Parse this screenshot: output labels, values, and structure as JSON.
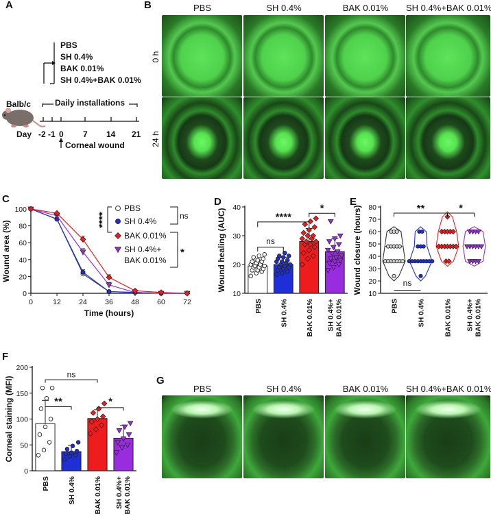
{
  "panel_letters": [
    "A",
    "B",
    "C",
    "D",
    "E",
    "F",
    "G"
  ],
  "panel_a": {
    "treatments": [
      "PBS",
      "SH 0.4%",
      "BAK 0.01%",
      "SH 0.4%+BAK 0.01%"
    ],
    "daily_label": "Daily installations",
    "mouse_label": "Balb/c",
    "day_label": "Day",
    "days": [
      "-2",
      "-1",
      "0",
      "7",
      "14",
      "21"
    ],
    "wound_label": "Corneal wound"
  },
  "panel_b": {
    "columns": [
      "PBS",
      "SH 0.4%",
      "BAK 0.01%",
      "SH 0.4%+BAK 0.01%"
    ],
    "rows": [
      "0 h",
      "24 h"
    ]
  },
  "panel_g": {
    "columns": [
      "PBS",
      "SH 0.4%",
      "BAK 0.01%",
      "SH 0.4%+BAK 0.01%"
    ]
  },
  "colors": {
    "pbs": "#ffffff",
    "sh": "#1f2fd8",
    "bak": "#ee1c1c",
    "shbak": "#9a2ce0",
    "fluor": "#39c93a"
  },
  "chart_data": [
    {
      "id": "C",
      "type": "line",
      "xlabel": "Time (hours)",
      "ylabel": "Wound area (%)",
      "x": [
        0,
        12,
        24,
        36,
        48,
        60,
        72
      ],
      "xlim": [
        0,
        72
      ],
      "ylim": [
        0,
        100
      ],
      "xticks": [
        "0",
        "12",
        "24",
        "36",
        "48",
        "60",
        "72"
      ],
      "yticks": [
        "0",
        "20",
        "40",
        "60",
        "80",
        "100"
      ],
      "series": [
        {
          "name": "PBS",
          "values": [
            100,
            88,
            23,
            2,
            1,
            0,
            0
          ],
          "errors": [
            0,
            2,
            3,
            1,
            0,
            0,
            0
          ]
        },
        {
          "name": "SH 0.4%",
          "values": [
            100,
            88,
            25,
            2,
            1,
            0,
            0
          ],
          "errors": [
            0,
            2,
            3,
            1,
            0,
            0,
            0
          ]
        },
        {
          "name": "BAK 0.01%",
          "values": [
            100,
            95,
            64,
            19,
            3,
            1,
            0
          ],
          "errors": [
            0,
            1,
            4,
            3,
            1,
            0,
            0
          ]
        },
        {
          "name": "SH 0.4%+ BAK 0.01%",
          "values": [
            100,
            92,
            49,
            10,
            1,
            0,
            0
          ],
          "errors": [
            0,
            1,
            4,
            3,
            1,
            0,
            0
          ]
        }
      ],
      "annotations": [
        "****",
        "ns",
        "*"
      ]
    },
    {
      "id": "D",
      "type": "bar",
      "ylabel": "Wound healing (AUC)",
      "categories": [
        "PBS",
        "SH 0.4%",
        "BAK 0.01%",
        "SH 0.4%+ BAK 0.01%"
      ],
      "values": [
        19.5,
        20.0,
        28.0,
        24.5
      ],
      "errors": [
        2.0,
        2.5,
        4.5,
        4.5
      ],
      "ylim": [
        10,
        40
      ],
      "yticks": [
        "10",
        "20",
        "30",
        "40"
      ],
      "points": [
        [
          16,
          17,
          17.5,
          18,
          18,
          18.5,
          19,
          19,
          19.5,
          19.5,
          20,
          20,
          20.5,
          21,
          21,
          21.5,
          22,
          22.5,
          23,
          23.5
        ],
        [
          16.5,
          17,
          17.5,
          18,
          18.5,
          19,
          19,
          19.5,
          20,
          20,
          20.5,
          21,
          21,
          21.5,
          22,
          22.5,
          23,
          23,
          24
        ],
        [
          20,
          22,
          23,
          24,
          25,
          26,
          27,
          27,
          28,
          28,
          29,
          29,
          30,
          30,
          31,
          32,
          33,
          34,
          35,
          36
        ],
        [
          18,
          19,
          20,
          20.5,
          21,
          21.5,
          22,
          22.5,
          23,
          24,
          24.5,
          25,
          26,
          27,
          28,
          29,
          30,
          35
        ]
      ],
      "annotations": [
        "ns",
        "****",
        "*"
      ]
    },
    {
      "id": "E",
      "type": "scatter",
      "ylabel": "Wound closure (hours)",
      "categories": [
        "PBS",
        "SH 0.4%",
        "BAK 0.01%",
        "SH 0.4%+ BAK 0.01%"
      ],
      "ylim": [
        10,
        80
      ],
      "yticks": [
        "10",
        "20",
        "30",
        "40",
        "50",
        "60",
        "70",
        "80"
      ],
      "points": [
        [
          24,
          36,
          36,
          36,
          36,
          36,
          36,
          36,
          48,
          48,
          48,
          48,
          48,
          60,
          60,
          60
        ],
        [
          24,
          36,
          36,
          36,
          36,
          36,
          36,
          36,
          36,
          36,
          48,
          48,
          48,
          60,
          60
        ],
        [
          36,
          36,
          48,
          48,
          48,
          48,
          48,
          48,
          48,
          60,
          60,
          60,
          60,
          60,
          72
        ],
        [
          36,
          36,
          36,
          36,
          48,
          48,
          48,
          48,
          48,
          48,
          60,
          60,
          60,
          60
        ]
      ],
      "annotations": [
        "**",
        "*",
        "ns"
      ]
    },
    {
      "id": "F",
      "type": "bar",
      "ylabel": "Corneal staining (MFI)",
      "categories": [
        "PBS",
        "SH 0.4%",
        "BAK 0.01%",
        "SH 0.4%+ BAK 0.01%"
      ],
      "values": [
        91,
        37,
        101,
        63
      ],
      "errors": [
        45,
        12,
        17,
        25
      ],
      "ylim": [
        0,
        200
      ],
      "yticks": [
        "0",
        "50",
        "100",
        "150",
        "200"
      ],
      "points": [
        [
          30,
          40,
          55,
          70,
          85,
          100,
          120,
          140,
          160,
          160
        ],
        [
          22,
          28,
          30,
          33,
          35,
          38,
          42,
          48,
          55
        ],
        [
          72,
          80,
          88,
          95,
          100,
          105,
          112,
          120,
          130
        ],
        [
          35,
          45,
          50,
          55,
          62,
          70,
          78,
          85,
          92
        ]
      ],
      "annotations": [
        "ns",
        "**",
        "*"
      ]
    }
  ]
}
